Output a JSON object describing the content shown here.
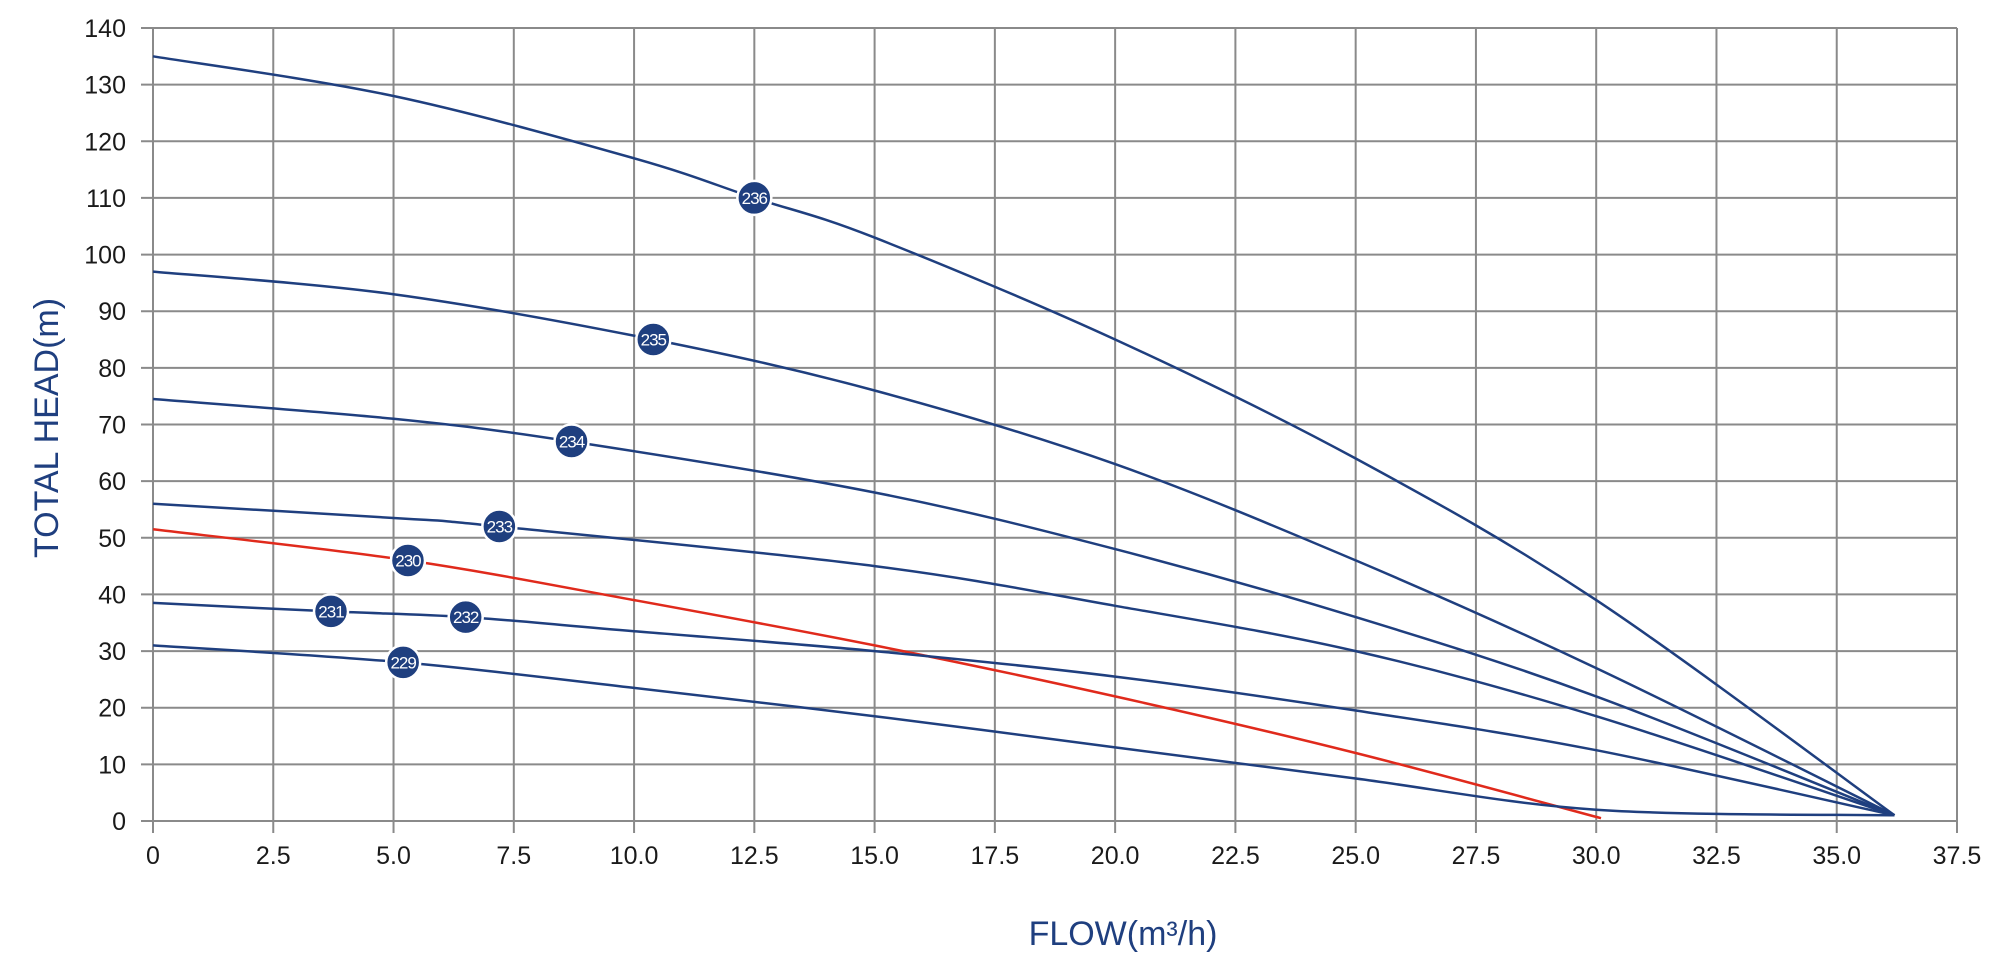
{
  "chart_data": {
    "type": "line",
    "title": "",
    "xlabel": "FLOW(m³/h)",
    "ylabel": "TOTAL HEAD(m)",
    "xlim": [
      0,
      37.5
    ],
    "ylim": [
      0,
      140
    ],
    "x_ticks": [
      "0",
      "2.5",
      "5.0",
      "7.5",
      "10.0",
      "12.5",
      "15.0",
      "17.5",
      "20.0",
      "22.5",
      "25.0",
      "27.5",
      "30.0",
      "32.5",
      "35.0",
      "37.5"
    ],
    "y_ticks": [
      "0",
      "10",
      "20",
      "30",
      "40",
      "50",
      "60",
      "70",
      "80",
      "90",
      "100",
      "110",
      "120",
      "130",
      "140"
    ],
    "grid": true,
    "series": [
      {
        "name": "236",
        "color": "#1f3f7f",
        "x": [
          0,
          5,
          10,
          12.5,
          15,
          20,
          25,
          30,
          36.2
        ],
        "y": [
          135,
          128,
          117,
          110,
          103,
          85,
          64,
          39,
          1
        ],
        "marker": {
          "x": 12.5,
          "y": 110
        }
      },
      {
        "name": "235",
        "color": "#1f3f7f",
        "x": [
          0,
          5,
          10.4,
          15,
          20,
          25,
          30,
          36.2
        ],
        "y": [
          97,
          93,
          85,
          76,
          63,
          46,
          27,
          1
        ],
        "marker": {
          "x": 10.4,
          "y": 85
        }
      },
      {
        "name": "234",
        "color": "#1f3f7f",
        "x": [
          0,
          5,
          8.7,
          15,
          20,
          25,
          30,
          36.2
        ],
        "y": [
          74.5,
          71,
          67,
          58,
          48,
          36,
          22,
          1
        ],
        "marker": {
          "x": 8.7,
          "y": 67
        }
      },
      {
        "name": "233",
        "color": "#1f3f7f",
        "x": [
          0,
          5,
          7.2,
          15,
          20,
          25,
          30,
          36.2
        ],
        "y": [
          56,
          53.5,
          52,
          45,
          38,
          30,
          18.5,
          1
        ],
        "marker": {
          "x": 7.2,
          "y": 52
        }
      },
      {
        "name": "230",
        "color": "#e02a1c",
        "x": [
          0,
          5.3,
          10,
          15,
          20,
          25,
          30.1
        ],
        "y": [
          51.5,
          46,
          39,
          31,
          22,
          12,
          0.5
        ],
        "marker": {
          "x": 5.3,
          "y": 46
        }
      },
      {
        "name": "232",
        "color": "#1f3f7f",
        "x": [
          0,
          3.7,
          6.5,
          10,
          15,
          20,
          25,
          30,
          36.2
        ],
        "y": [
          38.5,
          37,
          36,
          33.5,
          30,
          25.5,
          19.5,
          12.5,
          1
        ],
        "marker": {
          "x": 6.5,
          "y": 36
        }
      },
      {
        "name": "229",
        "color": "#1f3f7f",
        "x": [
          0,
          5.2,
          10,
          15,
          20,
          25,
          30,
          36.2
        ],
        "y": [
          31,
          28,
          23.5,
          18.5,
          13,
          7.5,
          2,
          1
        ],
        "marker": {
          "x": 5.2,
          "y": 28
        }
      }
    ],
    "extra_markers": [
      {
        "label": "231",
        "x": 3.7,
        "y": 37
      }
    ]
  }
}
